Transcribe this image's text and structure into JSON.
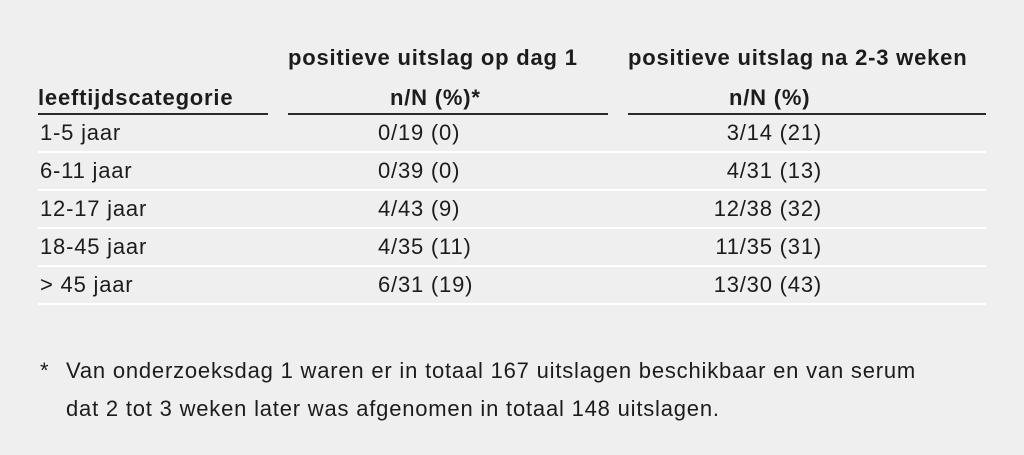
{
  "table": {
    "header": {
      "col1_label": "leeftijdscategorie",
      "col2_title": "positieve uitslag op dag 1",
      "col2_sub": "n/N (%)*",
      "col3_title": "positieve uitslag na 2-3 weken",
      "col3_sub": "n/N (%)"
    },
    "rows": [
      {
        "age": "1-5 jaar",
        "day1": "0/19 (0)",
        "weeks": "3/14 (21)"
      },
      {
        "age": "6-11 jaar",
        "day1": "0/39 (0)",
        "weeks": "4/31 (13)"
      },
      {
        "age": "12-17 jaar",
        "day1": "4/43 (9)",
        "weeks": "12/38 (32)"
      },
      {
        "age": "18-45 jaar",
        "day1": "4/35 (11)",
        "weeks": "11/35 (31)"
      },
      {
        "age": "> 45 jaar",
        "day1": "6/31 (19)",
        "weeks": "13/30 (43)"
      }
    ]
  },
  "footnote": {
    "marker": "*",
    "lines": [
      "Van onderzoeksdag 1 waren er in totaal 167 uitslagen beschikbaar en van serum",
      "dat 2 tot 3 weken later was afgenomen in totaal 148 uitslagen."
    ]
  },
  "colors": {
    "background": "#efefef",
    "text": "#1c1c1c",
    "header_rule": "#2a2a2a",
    "row_rule": "#ffffff"
  }
}
